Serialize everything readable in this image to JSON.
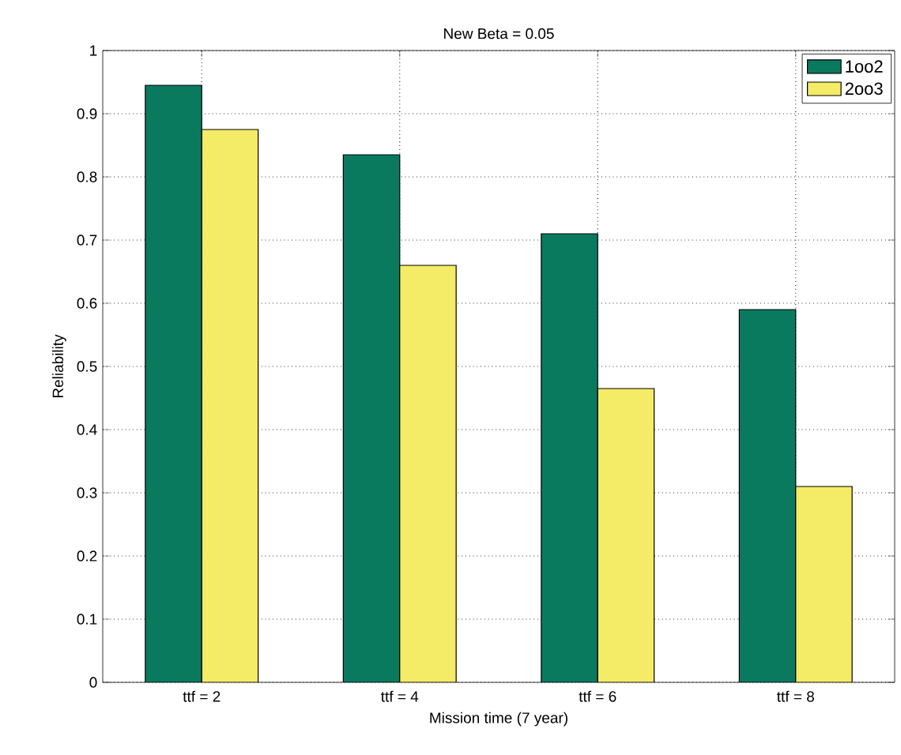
{
  "chart_data": {
    "type": "bar",
    "title": "New Beta = 0.05",
    "xlabel": "Mission time (7 year)",
    "ylabel": "Reliability",
    "categories": [
      "ttf = 2",
      "ttf = 4",
      "ttf = 6",
      "ttf = 8"
    ],
    "series": [
      {
        "name": "1oo2",
        "color": "#0a7a5e",
        "values": [
          0.945,
          0.835,
          0.71,
          0.59
        ]
      },
      {
        "name": "2oo3",
        "color": "#f4eb66",
        "values": [
          0.875,
          0.66,
          0.465,
          0.31
        ]
      }
    ],
    "ylim": [
      0,
      1
    ],
    "yticks": [
      0,
      0.1,
      0.2,
      0.3,
      0.4,
      0.5,
      0.6,
      0.7,
      0.8,
      0.9,
      1
    ],
    "grid": true,
    "legend": "top right"
  }
}
